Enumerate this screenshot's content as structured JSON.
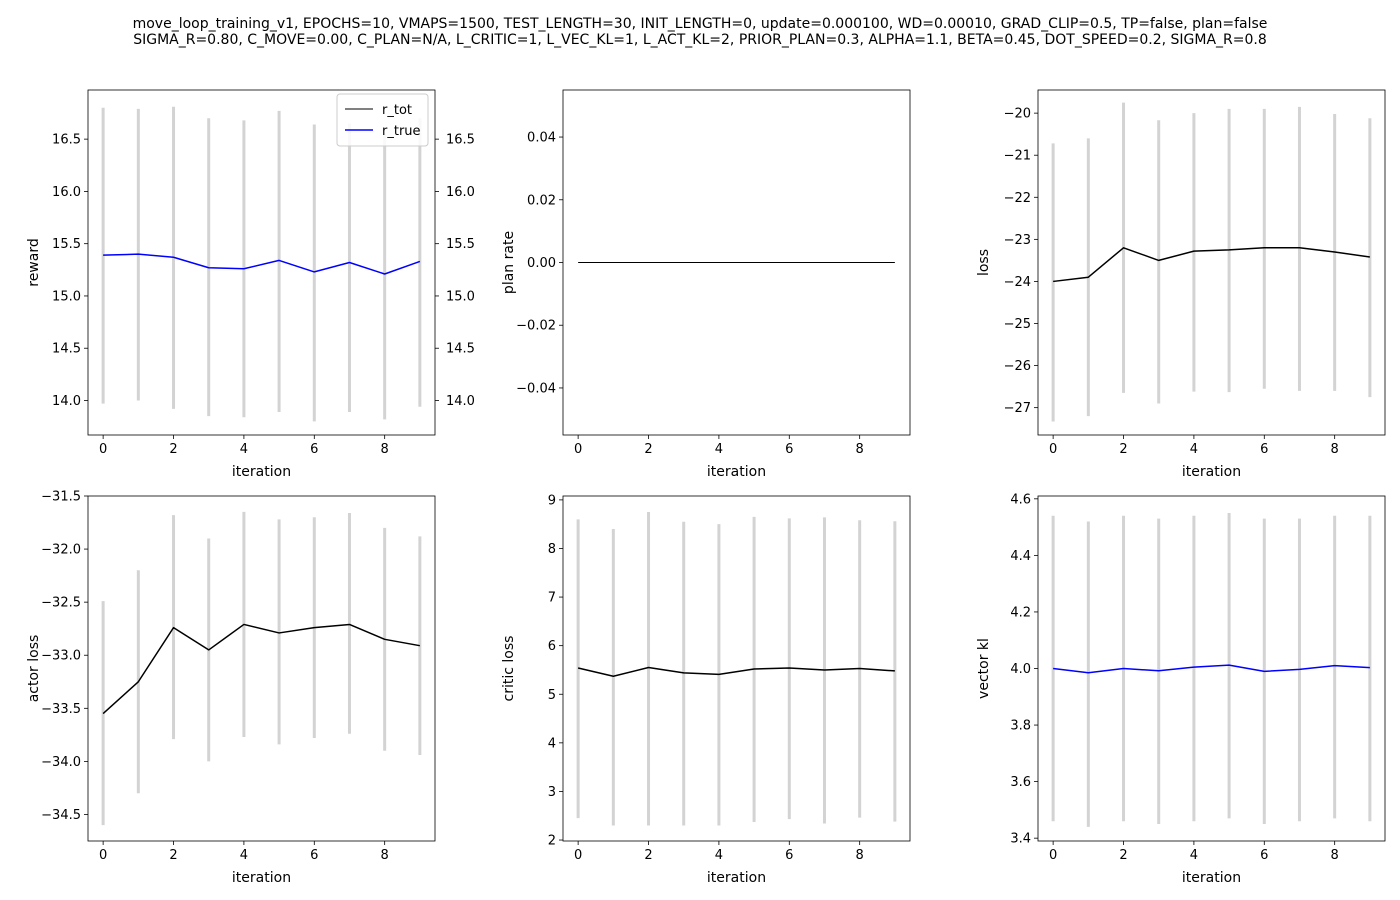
{
  "title_lines": [
    "move_loop_training_v1, EPOCHS=10, VMAPS=1500, TEST_LENGTH=30, INIT_LENGTH=0, update=0.000100, WD=0.00010, GRAD_CLIP=0.5, TP=false, plan=false",
    "SIGMA_R=0.80, C_MOVE=0.00, C_PLAN=N/A, L_CRITIC=1, L_VEC_KL=1, L_ACT_KL=2, PRIOR_PLAN=0.3, ALPHA=1.1, BETA=0.45, DOT_SPEED=0.2, SIGMA_R=0.8"
  ],
  "colors": {
    "bar": "#d3d3d3",
    "line_black": "#000000",
    "line_blue": "#0000ff",
    "axis": "#000000"
  },
  "chart_data": [
    {
      "id": "reward",
      "type": "line",
      "xlabel": "iteration",
      "ylabel": "reward",
      "xlim": [
        -0.43,
        9.43
      ],
      "ylim": [
        13.67,
        16.97
      ],
      "xticks": [
        0,
        2,
        4,
        6,
        8
      ],
      "yticks": [
        14.0,
        14.5,
        15.0,
        15.5,
        16.0,
        16.5
      ],
      "ytick_labels": [
        "14.0",
        "14.5",
        "15.0",
        "15.5",
        "16.0",
        "16.5"
      ],
      "right_yticks": [
        14.0,
        14.5,
        15.0,
        15.5,
        16.0,
        16.5
      ],
      "right_ytick_labels": [
        "14.0",
        "14.5",
        "15.0",
        "15.5",
        "16.0",
        "16.5"
      ],
      "legend": {
        "position": "top-right",
        "entries": [
          {
            "label": "r_tot",
            "color": "#000000",
            "width": 1
          },
          {
            "label": "r_true",
            "color": "#0000ff",
            "width": 1.5
          }
        ]
      },
      "x": [
        0,
        1,
        2,
        3,
        4,
        5,
        6,
        7,
        8,
        9
      ],
      "error_bars": {
        "low": [
          13.97,
          14.0,
          13.92,
          13.85,
          13.84,
          13.89,
          13.8,
          13.89,
          13.82,
          13.94
        ],
        "high": [
          16.8,
          16.79,
          16.81,
          16.7,
          16.68,
          16.77,
          16.64,
          16.65,
          16.55,
          16.7
        ]
      },
      "series": [
        {
          "name": "r_true",
          "color": "#0000ff",
          "width": 1.5,
          "values": [
            15.39,
            15.4,
            15.37,
            15.27,
            15.26,
            15.34,
            15.23,
            15.32,
            15.21,
            15.33
          ]
        }
      ]
    },
    {
      "id": "plan-rate",
      "type": "line",
      "xlabel": "iteration",
      "ylabel": "plan rate",
      "xlim": [
        -0.43,
        9.43
      ],
      "ylim": [
        -0.055,
        0.055
      ],
      "xticks": [
        0,
        2,
        4,
        6,
        8
      ],
      "yticks": [
        -0.04,
        -0.02,
        0.0,
        0.02,
        0.04
      ],
      "ytick_labels": [
        "−0.04",
        "−0.02",
        "0.00",
        "0.02",
        "0.04"
      ],
      "x": [
        0,
        1,
        2,
        3,
        4,
        5,
        6,
        7,
        8,
        9
      ],
      "series": [
        {
          "color": "#000000",
          "width": 1,
          "values": [
            0,
            0,
            0,
            0,
            0,
            0,
            0,
            0,
            0,
            0
          ]
        }
      ]
    },
    {
      "id": "loss",
      "type": "line",
      "xlabel": "iteration",
      "ylabel": "loss",
      "xlim": [
        -0.43,
        9.43
      ],
      "ylim": [
        -27.65,
        -19.45
      ],
      "xticks": [
        0,
        2,
        4,
        6,
        8
      ],
      "yticks": [
        -27,
        -26,
        -25,
        -24,
        -23,
        -22,
        -21,
        -20
      ],
      "ytick_labels": [
        "−27",
        "−26",
        "−25",
        "−24",
        "−23",
        "−22",
        "−21",
        "−20"
      ],
      "x": [
        0,
        1,
        2,
        3,
        4,
        5,
        6,
        7,
        8,
        9
      ],
      "error_bars": {
        "low": [
          -27.33,
          -27.2,
          -26.65,
          -26.9,
          -26.62,
          -26.63,
          -26.55,
          -26.6,
          -26.6,
          -26.75
        ],
        "high": [
          -20.72,
          -20.6,
          -19.75,
          -20.17,
          -20.0,
          -19.9,
          -19.9,
          -19.85,
          -20.02,
          -20.12
        ]
      },
      "series": [
        {
          "color": "#000000",
          "width": 1.5,
          "values": [
            -24.0,
            -23.9,
            -23.2,
            -23.5,
            -23.28,
            -23.25,
            -23.2,
            -23.2,
            -23.3,
            -23.42
          ]
        }
      ]
    },
    {
      "id": "actor-loss",
      "type": "line",
      "xlabel": "iteration",
      "ylabel": "actor loss",
      "xlim": [
        -0.43,
        9.43
      ],
      "ylim": [
        -34.75,
        -31.5
      ],
      "xticks": [
        0,
        2,
        4,
        6,
        8
      ],
      "yticks": [
        -34.5,
        -34.0,
        -33.5,
        -33.0,
        -32.5,
        -32.0,
        -31.5
      ],
      "ytick_labels": [
        "−34.5",
        "−34.0",
        "−33.5",
        "−33.0",
        "−32.5",
        "−32.0",
        "−31.5"
      ],
      "x": [
        0,
        1,
        2,
        3,
        4,
        5,
        6,
        7,
        8,
        9
      ],
      "error_bars": {
        "low": [
          -34.6,
          -34.3,
          -33.79,
          -34.0,
          -33.77,
          -33.84,
          -33.78,
          -33.74,
          -33.9,
          -33.94
        ],
        "high": [
          -32.49,
          -32.2,
          -31.68,
          -31.9,
          -31.65,
          -31.72,
          -31.7,
          -31.66,
          -31.8,
          -31.88
        ]
      },
      "series": [
        {
          "color": "#000000",
          "width": 1.5,
          "values": [
            -33.55,
            -33.25,
            -32.74,
            -32.95,
            -32.71,
            -32.79,
            -32.74,
            -32.71,
            -32.85,
            -32.91
          ]
        }
      ]
    },
    {
      "id": "critic-loss",
      "type": "line",
      "xlabel": "iteration",
      "ylabel": "critic loss",
      "xlim": [
        -0.43,
        9.43
      ],
      "ylim": [
        1.98,
        9.08
      ],
      "xticks": [
        0,
        2,
        4,
        6,
        8
      ],
      "yticks": [
        2,
        3,
        4,
        5,
        6,
        7,
        8,
        9
      ],
      "ytick_labels": [
        "2",
        "3",
        "4",
        "5",
        "6",
        "7",
        "8",
        "9"
      ],
      "x": [
        0,
        1,
        2,
        3,
        4,
        5,
        6,
        7,
        8,
        9
      ],
      "error_bars": {
        "low": [
          2.45,
          2.3,
          2.3,
          2.3,
          2.3,
          2.37,
          2.43,
          2.34,
          2.46,
          2.38
        ],
        "high": [
          8.6,
          8.4,
          8.75,
          8.55,
          8.5,
          8.65,
          8.62,
          8.64,
          8.58,
          8.56
        ]
      },
      "series": [
        {
          "color": "#000000",
          "width": 1.5,
          "values": [
            5.54,
            5.37,
            5.55,
            5.44,
            5.41,
            5.52,
            5.54,
            5.5,
            5.53,
            5.48
          ]
        }
      ]
    },
    {
      "id": "vector-kl",
      "type": "line",
      "xlabel": "iteration",
      "ylabel": "vector kl",
      "xlim": [
        -0.43,
        9.43
      ],
      "ylim": [
        3.39,
        4.61
      ],
      "xticks": [
        0,
        2,
        4,
        6,
        8
      ],
      "yticks": [
        3.4,
        3.6,
        3.8,
        4.0,
        4.2,
        4.4,
        4.6
      ],
      "ytick_labels": [
        "3.4",
        "3.6",
        "3.8",
        "4.0",
        "4.2",
        "4.4",
        "4.6"
      ],
      "x": [
        0,
        1,
        2,
        3,
        4,
        5,
        6,
        7,
        8,
        9
      ],
      "error_bars": {
        "low": [
          3.46,
          3.44,
          3.46,
          3.45,
          3.46,
          3.47,
          3.45,
          3.46,
          3.47,
          3.46
        ],
        "high": [
          4.54,
          4.52,
          4.54,
          4.53,
          4.54,
          4.55,
          4.53,
          4.53,
          4.54,
          4.54
        ]
      },
      "series": [
        {
          "color": "#0000ff",
          "width": 1.5,
          "values": [
            4.0,
            3.985,
            4.0,
            3.992,
            4.005,
            4.012,
            3.99,
            3.997,
            4.01,
            4.003
          ]
        }
      ]
    }
  ]
}
